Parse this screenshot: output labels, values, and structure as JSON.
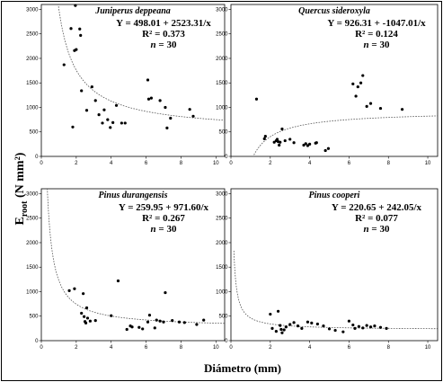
{
  "figure": {
    "ylabel_main": "E",
    "ylabel_sub": "root",
    "ylabel_unit": " (N mm²)",
    "xlabel": "Diámetro  (mm)"
  },
  "chart_data": [
    {
      "type": "scatter",
      "title": "Juniperus deppeana",
      "equation": "Y = 498.01 + 2523.31/x",
      "r2": "R² = 0.373",
      "n": "n",
      "n_value": " = 30",
      "fit": {
        "a": 498.01,
        "b": 2523.31
      },
      "xlim": [
        0,
        10.5
      ],
      "ylim": [
        0,
        3100
      ],
      "xticks": [
        "0",
        "2",
        "4",
        "6",
        "8",
        "10"
      ],
      "yticks": [
        "0",
        "500",
        "1000",
        "1500",
        "2000",
        "2500",
        "3000"
      ],
      "points": [
        [
          1.3,
          1870
        ],
        [
          1.7,
          2610
        ],
        [
          1.8,
          600
        ],
        [
          1.9,
          2160
        ],
        [
          1.95,
          3080
        ],
        [
          2.0,
          2180
        ],
        [
          2.2,
          2600
        ],
        [
          2.25,
          2470
        ],
        [
          2.3,
          1340
        ],
        [
          2.6,
          940
        ],
        [
          2.9,
          1420
        ],
        [
          3.1,
          1140
        ],
        [
          3.3,
          850
        ],
        [
          3.5,
          680
        ],
        [
          3.6,
          950
        ],
        [
          3.8,
          750
        ],
        [
          3.95,
          590
        ],
        [
          4.1,
          690
        ],
        [
          4.3,
          1040
        ],
        [
          4.6,
          680
        ],
        [
          4.8,
          680
        ],
        [
          6.1,
          1560
        ],
        [
          6.15,
          1170
        ],
        [
          6.3,
          1190
        ],
        [
          6.8,
          1140
        ],
        [
          7.1,
          1000
        ],
        [
          7.2,
          580
        ],
        [
          7.4,
          780
        ],
        [
          8.5,
          960
        ],
        [
          8.7,
          820
        ]
      ]
    },
    {
      "type": "scatter",
      "title": "Quercus sideroxyla",
      "equation": "Y = 926.31 + -1047.01/x",
      "r2": "R² = 0.124",
      "n": "n",
      "n_value": " = 30",
      "fit": {
        "a": 926.31,
        "b": -1047.01
      },
      "xlim": [
        0,
        10.5
      ],
      "ylim": [
        0,
        3100
      ],
      "xticks": [
        "0",
        "2",
        "4",
        "6",
        "8",
        "10"
      ],
      "yticks": [
        "0",
        "500",
        "1000",
        "1500",
        "2000",
        "2500",
        "3000"
      ],
      "points": [
        [
          1.3,
          1170
        ],
        [
          1.7,
          360
        ],
        [
          1.75,
          410
        ],
        [
          2.2,
          290
        ],
        [
          2.3,
          320
        ],
        [
          2.35,
          350
        ],
        [
          2.4,
          300
        ],
        [
          2.45,
          230
        ],
        [
          2.5,
          290
        ],
        [
          2.6,
          560
        ],
        [
          2.75,
          320
        ],
        [
          3.0,
          350
        ],
        [
          3.2,
          280
        ],
        [
          3.7,
          230
        ],
        [
          3.8,
          260
        ],
        [
          3.9,
          220
        ],
        [
          4.0,
          250
        ],
        [
          4.3,
          270
        ],
        [
          4.35,
          280
        ],
        [
          4.8,
          120
        ],
        [
          4.95,
          160
        ],
        [
          6.2,
          1480
        ],
        [
          6.35,
          1230
        ],
        [
          6.45,
          1420
        ],
        [
          6.6,
          1500
        ],
        [
          6.7,
          1650
        ],
        [
          6.9,
          1020
        ],
        [
          7.1,
          1080
        ],
        [
          7.6,
          980
        ],
        [
          8.7,
          960
        ]
      ]
    },
    {
      "type": "scatter",
      "title": "Pinus durangensis",
      "equation": "Y = 259.95 + 971.60/x",
      "r2": "R² = 0.267",
      "n": "n",
      "n_value": " = 30",
      "fit": {
        "a": 259.95,
        "b": 971.6
      },
      "xlim": [
        0,
        10.5
      ],
      "ylim": [
        0,
        3100
      ],
      "xticks": [
        "0",
        "2",
        "4",
        "6",
        "8",
        "10"
      ],
      "yticks": [
        "0",
        "500",
        "1000",
        "1500",
        "2000",
        "2500",
        "3000"
      ],
      "points": [
        [
          1.6,
          1020
        ],
        [
          1.9,
          1060
        ],
        [
          2.3,
          560
        ],
        [
          2.4,
          960
        ],
        [
          2.45,
          490
        ],
        [
          2.5,
          390
        ],
        [
          2.55,
          360
        ],
        [
          2.6,
          670
        ],
        [
          2.65,
          460
        ],
        [
          2.8,
          400
        ],
        [
          3.1,
          410
        ],
        [
          4.0,
          510
        ],
        [
          4.4,
          1220
        ],
        [
          4.9,
          230
        ],
        [
          5.1,
          300
        ],
        [
          5.2,
          280
        ],
        [
          5.6,
          270
        ],
        [
          5.8,
          240
        ],
        [
          6.1,
          380
        ],
        [
          6.2,
          520
        ],
        [
          6.5,
          260
        ],
        [
          6.6,
          420
        ],
        [
          6.8,
          400
        ],
        [
          7.0,
          380
        ],
        [
          7.1,
          980
        ],
        [
          7.5,
          410
        ],
        [
          7.9,
          380
        ],
        [
          8.2,
          370
        ],
        [
          8.9,
          330
        ],
        [
          9.3,
          420
        ]
      ]
    },
    {
      "type": "scatter",
      "title": "Pinus cooperi",
      "equation": "Y = 220.65 + 242.05/x",
      "r2": "R² = 0.077",
      "n": "n",
      "n_value": " = 30",
      "fit": {
        "a": 220.65,
        "b": 242.05
      },
      "xlim": [
        0,
        10.5
      ],
      "ylim": [
        0,
        3100
      ],
      "xticks": [
        "0",
        "2",
        "4",
        "6",
        "8",
        "10"
      ],
      "yticks": [
        "0",
        "500",
        "1000",
        "1500",
        "2000",
        "2500",
        "3000"
      ],
      "points": [
        [
          2.0,
          540
        ],
        [
          2.1,
          250
        ],
        [
          2.3,
          190
        ],
        [
          2.4,
          600
        ],
        [
          2.5,
          310
        ],
        [
          2.55,
          230
        ],
        [
          2.6,
          160
        ],
        [
          2.7,
          220
        ],
        [
          2.8,
          280
        ],
        [
          3.0,
          330
        ],
        [
          3.2,
          370
        ],
        [
          3.4,
          300
        ],
        [
          3.6,
          250
        ],
        [
          3.9,
          380
        ],
        [
          4.1,
          360
        ],
        [
          4.4,
          340
        ],
        [
          4.7,
          300
        ],
        [
          5.0,
          240
        ],
        [
          5.3,
          210
        ],
        [
          5.7,
          180
        ],
        [
          6.0,
          400
        ],
        [
          6.2,
          320
        ],
        [
          6.3,
          250
        ],
        [
          6.5,
          290
        ],
        [
          6.7,
          260
        ],
        [
          6.9,
          310
        ],
        [
          7.1,
          280
        ],
        [
          7.3,
          300
        ],
        [
          7.6,
          270
        ],
        [
          7.9,
          250
        ]
      ]
    }
  ]
}
